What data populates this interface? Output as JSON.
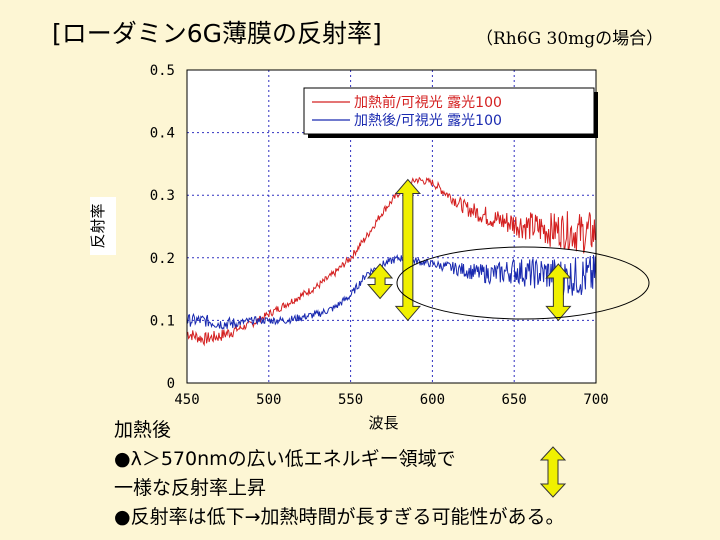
{
  "slide": {
    "title": "[ローダミン6G薄膜の反射率]",
    "subtitle": "（Rh6G 30mgの場合）",
    "notes": [
      "加熱後",
      "●λ＞570nmの広い低エネルギー領域で",
      "一様な反射率上昇",
      "●反射率は低下→加熱時間が長すぎる可能性がある。"
    ]
  },
  "chart_data": {
    "type": "line",
    "title": "",
    "xlabel": "波長",
    "ylabel": "反射率",
    "xlim": [
      450,
      700
    ],
    "ylim": [
      0,
      0.5
    ],
    "x_ticks": [
      450,
      500,
      550,
      600,
      650,
      700
    ],
    "x_tick_labels": [
      "450",
      "500",
      "550",
      "600",
      "650",
      "700"
    ],
    "y_ticks": [
      0,
      0.1,
      0.2,
      0.3,
      0.4,
      0.5
    ],
    "y_tick_labels": [
      "0",
      "0.1",
      "0.2",
      "0.3",
      "0.4",
      "0.5"
    ],
    "grid": true,
    "legend_position": "top-right",
    "series": [
      {
        "name": "加熱前/可視光 露光100",
        "color": "#d42020",
        "x": [
          450,
          460,
          470,
          480,
          490,
          500,
          510,
          520,
          530,
          540,
          550,
          560,
          570,
          580,
          590,
          600,
          610,
          620,
          630,
          640,
          650,
          660,
          670,
          680,
          690,
          700
        ],
        "values": [
          0.08,
          0.07,
          0.075,
          0.085,
          0.095,
          0.11,
          0.125,
          0.14,
          0.155,
          0.175,
          0.2,
          0.235,
          0.275,
          0.305,
          0.325,
          0.32,
          0.3,
          0.28,
          0.27,
          0.26,
          0.255,
          0.25,
          0.245,
          0.245,
          0.24,
          0.24
        ]
      },
      {
        "name": "加熱後/可視光 露光100",
        "color": "#1a2ab0",
        "x": [
          450,
          460,
          470,
          480,
          490,
          500,
          510,
          520,
          530,
          540,
          550,
          560,
          570,
          580,
          590,
          600,
          610,
          620,
          630,
          640,
          650,
          660,
          670,
          680,
          690,
          700
        ],
        "values": [
          0.1,
          0.1,
          0.095,
          0.095,
          0.1,
          0.1,
          0.1,
          0.105,
          0.11,
          0.12,
          0.14,
          0.175,
          0.19,
          0.2,
          0.195,
          0.19,
          0.185,
          0.18,
          0.175,
          0.175,
          0.18,
          0.175,
          0.175,
          0.17,
          0.17,
          0.17
        ]
      }
    ],
    "annotations": [
      {
        "type": "double-arrow",
        "x": 568,
        "y_from": 0.135,
        "y_to": 0.19,
        "color": "#f0f000"
      },
      {
        "type": "double-arrow",
        "x": 585,
        "y_from": 0.1,
        "y_to": 0.325,
        "color": "#f0f000"
      },
      {
        "type": "double-arrow",
        "x": 677,
        "y_from": 0.1,
        "y_to": 0.19,
        "color": "#f0f000"
      },
      {
        "type": "ellipse",
        "x_range": [
          565,
          720
        ],
        "y_range": [
          0.1,
          0.22
        ],
        "color": "#000000"
      }
    ],
    "note_arrow_color": "#f0f000"
  }
}
